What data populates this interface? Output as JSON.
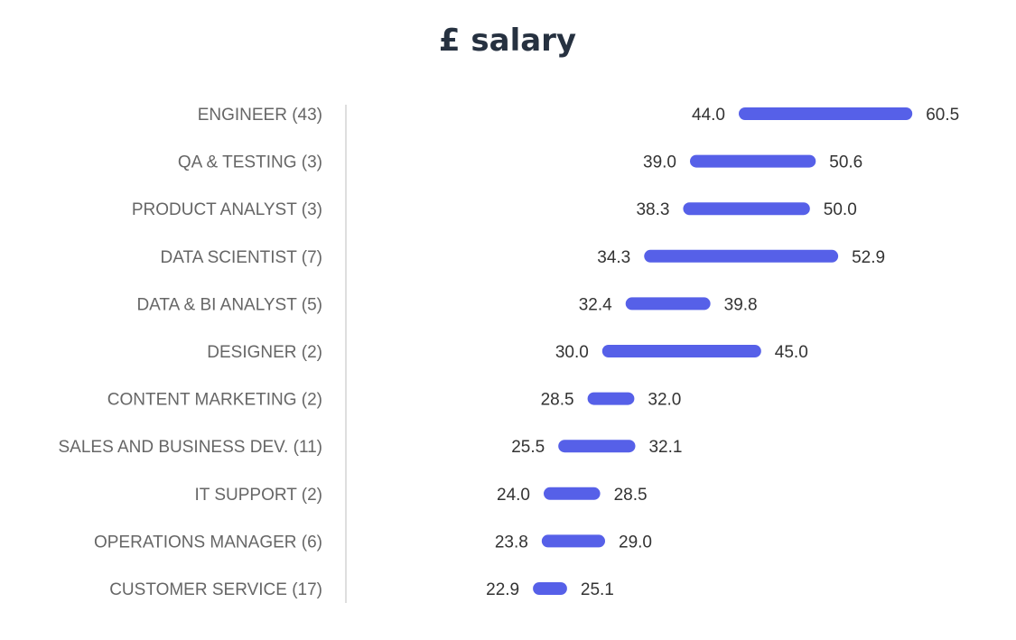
{
  "colors": {
    "bar": "#5660e8",
    "title": "#263140",
    "category_text": "#666666",
    "value_text": "#333333",
    "axis": "#c8c8c8"
  },
  "chart_data": {
    "type": "range-bar",
    "title": "£ salary",
    "xlabel": "",
    "ylabel": "",
    "xlim": [
      0,
      62
    ],
    "grid": false,
    "legend": "none",
    "categories": [
      "ENGINEER (43)",
      "QA & TESTING (3)",
      "PRODUCT ANALYST (3)",
      "DATA SCIENTIST (7)",
      "DATA & BI ANALYST (5)",
      "DESIGNER (2)",
      "CONTENT MARKETING (2)",
      "SALES AND BUSINESS DEV.  (11)",
      "IT SUPPORT (2)",
      "OPERATIONS MANAGER (6)",
      "CUSTOMER SERVICE (17)"
    ],
    "series": [
      {
        "name": "low",
        "values": [
          44.0,
          39.0,
          38.3,
          34.3,
          32.4,
          30.0,
          28.5,
          25.5,
          24.0,
          23.8,
          22.9
        ],
        "labels": [
          "44.0",
          "39.0",
          "38.3",
          "34.3",
          "32.4",
          "30.0",
          "28.5",
          "25.5",
          "24.0",
          "23.8",
          "22.9"
        ]
      },
      {
        "name": "high",
        "values": [
          60.5,
          50.6,
          50.0,
          52.9,
          39.8,
          45.0,
          32.0,
          32.1,
          28.5,
          29.0,
          25.1
        ],
        "labels": [
          "60.5",
          "50.6",
          "50.0",
          "52.9",
          "39.8",
          "45.0",
          "32.0",
          "32.1",
          "28.5",
          "29.0",
          "25.1"
        ]
      }
    ]
  }
}
